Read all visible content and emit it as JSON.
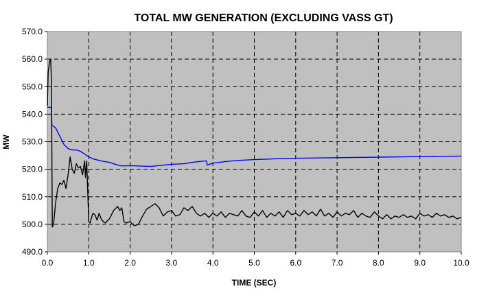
{
  "chart_data": {
    "type": "line",
    "title": "TOTAL MW GENERATION (EXCLUDING VASS GT)",
    "xlabel": "TIME (SEC)",
    "ylabel": "MW",
    "xlim": [
      0,
      10
    ],
    "ylim": [
      490,
      570
    ],
    "xticks": [
      "0.0",
      "1.0",
      "2.0",
      "3.0",
      "4.0",
      "5.0",
      "6.0",
      "7.0",
      "8.0",
      "9.0",
      "10.0"
    ],
    "yticks": [
      "490.0",
      "500.0",
      "510.0",
      "520.0",
      "530.0",
      "540.0",
      "550.0",
      "560.0",
      "570.0"
    ],
    "grid": true,
    "legend": "none",
    "plot_background": "#c0c0c0",
    "series": [
      {
        "color": "#0000ff",
        "x": [
          0.0,
          0.01,
          0.1,
          0.11,
          0.2,
          0.3,
          0.4,
          0.5,
          0.6,
          0.7,
          0.8,
          0.9,
          1.0,
          1.1,
          1.3,
          1.5,
          1.7,
          1.8,
          2.0,
          2.2,
          2.5,
          2.8,
          3.0,
          3.3,
          3.5,
          3.8,
          3.85,
          3.86,
          4.0,
          4.3,
          4.6,
          5.0,
          5.5,
          6.0,
          7.0,
          8.0,
          9.0,
          10.0
        ],
        "y": [
          542.5,
          542.5,
          542.5,
          536.0,
          535.0,
          532.0,
          529.0,
          527.5,
          527.0,
          527.0,
          526.5,
          525.5,
          524.5,
          523.8,
          523.0,
          522.5,
          521.5,
          521.2,
          521.3,
          521.2,
          521.0,
          521.5,
          521.8,
          522.0,
          522.5,
          523.0,
          523.0,
          521.5,
          522.2,
          522.8,
          523.2,
          523.5,
          523.8,
          524.0,
          524.2,
          524.4,
          524.6,
          524.8
        ]
      },
      {
        "color": "#000000",
        "x": [
          0.0,
          0.02,
          0.05,
          0.08,
          0.1,
          0.12,
          0.15,
          0.2,
          0.25,
          0.3,
          0.35,
          0.4,
          0.45,
          0.5,
          0.55,
          0.6,
          0.65,
          0.7,
          0.75,
          0.8,
          0.85,
          0.9,
          0.92,
          0.95,
          0.98,
          1.0,
          1.03,
          1.06,
          1.1,
          1.15,
          1.2,
          1.25,
          1.3,
          1.35,
          1.4,
          1.5,
          1.6,
          1.7,
          1.75,
          1.8,
          1.85,
          1.9,
          2.0,
          2.1,
          2.2,
          2.3,
          2.4,
          2.5,
          2.6,
          2.7,
          2.8,
          2.9,
          3.0,
          3.1,
          3.2,
          3.3,
          3.4,
          3.5,
          3.6,
          3.7,
          3.8,
          3.9,
          4.0,
          4.1,
          4.2,
          4.3,
          4.4,
          4.5,
          4.6,
          4.7,
          4.8,
          4.9,
          5.0,
          5.1,
          5.2,
          5.3,
          5.4,
          5.5,
          5.6,
          5.7,
          5.8,
          5.9,
          6.0,
          6.1,
          6.2,
          6.3,
          6.4,
          6.5,
          6.6,
          6.7,
          6.8,
          6.9,
          7.0,
          7.1,
          7.2,
          7.3,
          7.4,
          7.5,
          7.6,
          7.7,
          7.8,
          7.9,
          8.0,
          8.1,
          8.2,
          8.3,
          8.4,
          8.5,
          8.6,
          8.7,
          8.8,
          8.9,
          9.0,
          9.1,
          9.2,
          9.3,
          9.4,
          9.5,
          9.6,
          9.7,
          9.8,
          9.9,
          10.0
        ],
        "y": [
          543.0,
          555.0,
          559.0,
          560.0,
          552.0,
          499.0,
          500.0,
          508.0,
          513.0,
          515.0,
          514.5,
          516.0,
          513.0,
          518.0,
          524.5,
          520.0,
          518.5,
          522.0,
          520.5,
          521.0,
          518.0,
          523.0,
          517.0,
          523.0,
          510.0,
          501.0,
          500.5,
          502.0,
          504.0,
          503.5,
          501.5,
          504.0,
          502.0,
          501.0,
          500.5,
          502.0,
          505.0,
          506.5,
          505.0,
          506.0,
          501.0,
          500.5,
          501.0,
          499.5,
          500.0,
          503.0,
          505.5,
          506.5,
          507.5,
          506.0,
          503.0,
          504.5,
          505.0,
          503.0,
          503.5,
          506.0,
          505.0,
          506.5,
          504.0,
          503.0,
          504.0,
          502.5,
          504.0,
          503.0,
          504.5,
          502.5,
          504.0,
          503.5,
          503.0,
          505.0,
          503.0,
          502.5,
          504.5,
          503.0,
          505.0,
          502.5,
          504.0,
          503.0,
          504.5,
          502.5,
          505.0,
          503.5,
          504.0,
          503.0,
          505.0,
          503.5,
          504.5,
          503.0,
          505.5,
          503.0,
          504.0,
          502.5,
          504.5,
          503.0,
          504.0,
          503.5,
          505.0,
          502.5,
          504.0,
          503.0,
          502.5,
          504.5,
          503.0,
          502.0,
          503.5,
          502.0,
          503.0,
          502.5,
          503.5,
          502.5,
          503.0,
          502.0,
          504.0,
          503.0,
          503.5,
          502.5,
          504.0,
          503.0,
          503.5,
          502.5,
          503.0,
          502.0,
          502.5
        ]
      }
    ]
  }
}
